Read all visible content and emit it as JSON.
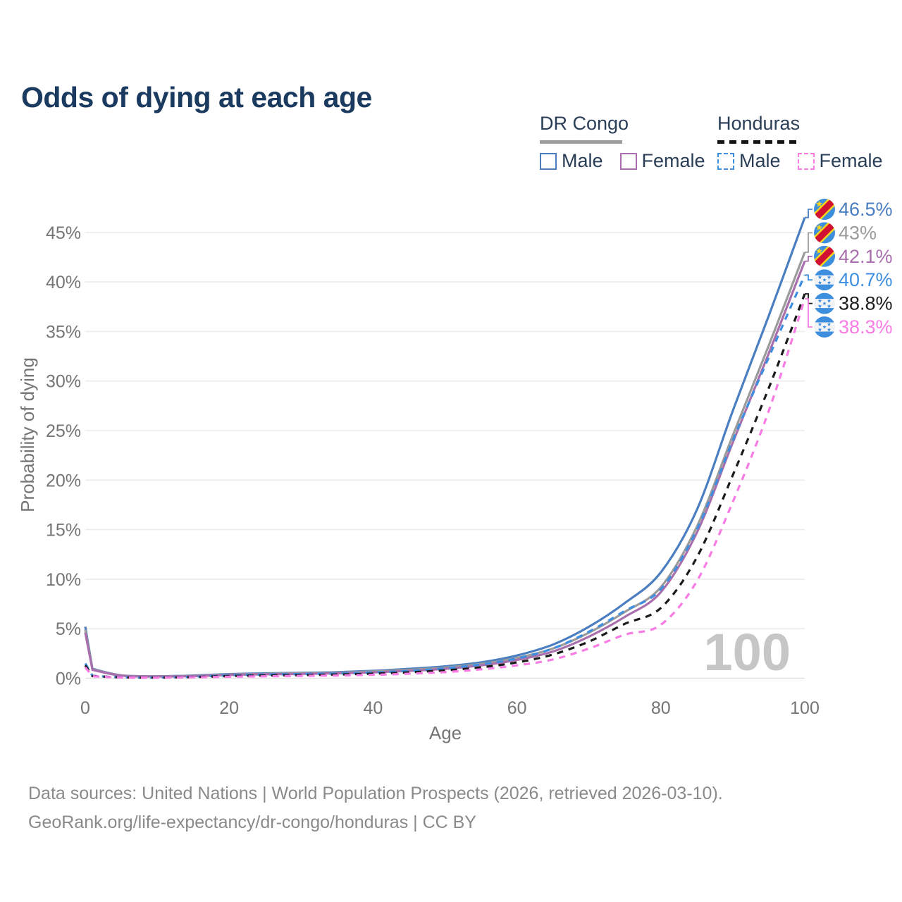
{
  "title": "Odds of dying at each age",
  "watermark": "100",
  "legend": {
    "groups": [
      {
        "label": "DR Congo",
        "line_style": "solid",
        "underline_color": "#9e9e9e",
        "items": [
          {
            "label": "Male",
            "color": "#4a7ec0",
            "dashed": false,
            "checked": false
          },
          {
            "label": "Female",
            "color": "#a96fad",
            "dashed": false,
            "checked": false
          }
        ]
      },
      {
        "label": "Honduras",
        "line_style": "dashed",
        "underline_color": "#141414",
        "items": [
          {
            "label": "Male",
            "color": "#3f8fe0",
            "dashed": true,
            "checked": false
          },
          {
            "label": "Female",
            "color": "#f87ce4",
            "dashed": true,
            "checked": false
          }
        ]
      }
    ]
  },
  "footer": {
    "line1": "Data sources: United Nations | World Population Prospects (2026, retrieved 2026-03-10).",
    "line2": "GeoRank.org/life-expectancy/dr-congo/honduras | CC BY"
  },
  "chart_data": {
    "type": "line",
    "title": "Odds of dying at each age",
    "xlabel": "Age",
    "ylabel": "Probability of dying",
    "xlim": [
      0,
      100
    ],
    "ylim": [
      0,
      48
    ],
    "grid": true,
    "legend_position": "top-right",
    "x_ticks": [
      0,
      20,
      40,
      60,
      80,
      100
    ],
    "y_ticks": [
      "0%",
      "5%",
      "10%",
      "15%",
      "20%",
      "25%",
      "30%",
      "35%",
      "40%",
      "45%"
    ],
    "hover_age": "100",
    "x": [
      0,
      1,
      5,
      10,
      15,
      20,
      25,
      30,
      35,
      40,
      45,
      50,
      55,
      60,
      65,
      70,
      75,
      80,
      85,
      90,
      95,
      100
    ],
    "series": [
      {
        "name": "DR Congo Male",
        "color": "#4a7ec0",
        "dash": "solid",
        "flag": "cd",
        "end_label": "46.5%",
        "values": [
          5.2,
          0.95,
          0.3,
          0.2,
          0.28,
          0.42,
          0.5,
          0.55,
          0.62,
          0.75,
          0.95,
          1.2,
          1.6,
          2.3,
          3.4,
          5.2,
          7.6,
          10.7,
          17.0,
          27.0,
          36.6,
          46.5
        ]
      },
      {
        "name": "DR Congo Both sexes",
        "color": "#9b9b9b",
        "dash": "solid",
        "flag": "cd",
        "end_label": "43%",
        "values": [
          4.9,
          0.9,
          0.28,
          0.19,
          0.25,
          0.38,
          0.45,
          0.5,
          0.56,
          0.68,
          0.85,
          1.08,
          1.45,
          2.05,
          3.0,
          4.6,
          6.7,
          9.2,
          15.3,
          24.5,
          33.6,
          43.0
        ]
      },
      {
        "name": "DR Congo Female",
        "color": "#a96fad",
        "dash": "solid",
        "flag": "cd",
        "end_label": "42.1%",
        "values": [
          4.6,
          0.85,
          0.27,
          0.18,
          0.22,
          0.33,
          0.4,
          0.44,
          0.5,
          0.6,
          0.75,
          0.95,
          1.3,
          1.85,
          2.7,
          4.2,
          6.2,
          8.7,
          14.7,
          23.8,
          32.8,
          42.1
        ]
      },
      {
        "name": "Honduras Male",
        "color": "#3f8fe0",
        "dash": "dashed",
        "flag": "hn",
        "end_label": "40.7%",
        "values": [
          1.5,
          0.25,
          0.1,
          0.08,
          0.15,
          0.3,
          0.38,
          0.42,
          0.48,
          0.58,
          0.75,
          1.0,
          1.4,
          2.0,
          3.0,
          4.7,
          6.8,
          9.0,
          15.0,
          24.0,
          32.4,
          40.7
        ]
      },
      {
        "name": "Honduras Both sexes",
        "color": "#1a1a1a",
        "dash": "dashed",
        "flag": "hn",
        "end_label": "38.8%",
        "values": [
          1.3,
          0.22,
          0.09,
          0.07,
          0.12,
          0.22,
          0.28,
          0.32,
          0.38,
          0.46,
          0.6,
          0.8,
          1.1,
          1.6,
          2.4,
          3.7,
          5.5,
          7.1,
          12.2,
          20.5,
          29.3,
          38.8
        ]
      },
      {
        "name": "Honduras Female",
        "color": "#f87ce4",
        "dash": "dashed",
        "flag": "hn",
        "end_label": "38.3%",
        "values": [
          1.1,
          0.2,
          0.08,
          0.06,
          0.09,
          0.15,
          0.2,
          0.24,
          0.28,
          0.35,
          0.46,
          0.62,
          0.9,
          1.3,
          1.9,
          3.0,
          4.4,
          5.4,
          9.8,
          17.8,
          27.0,
          38.3
        ]
      }
    ]
  }
}
